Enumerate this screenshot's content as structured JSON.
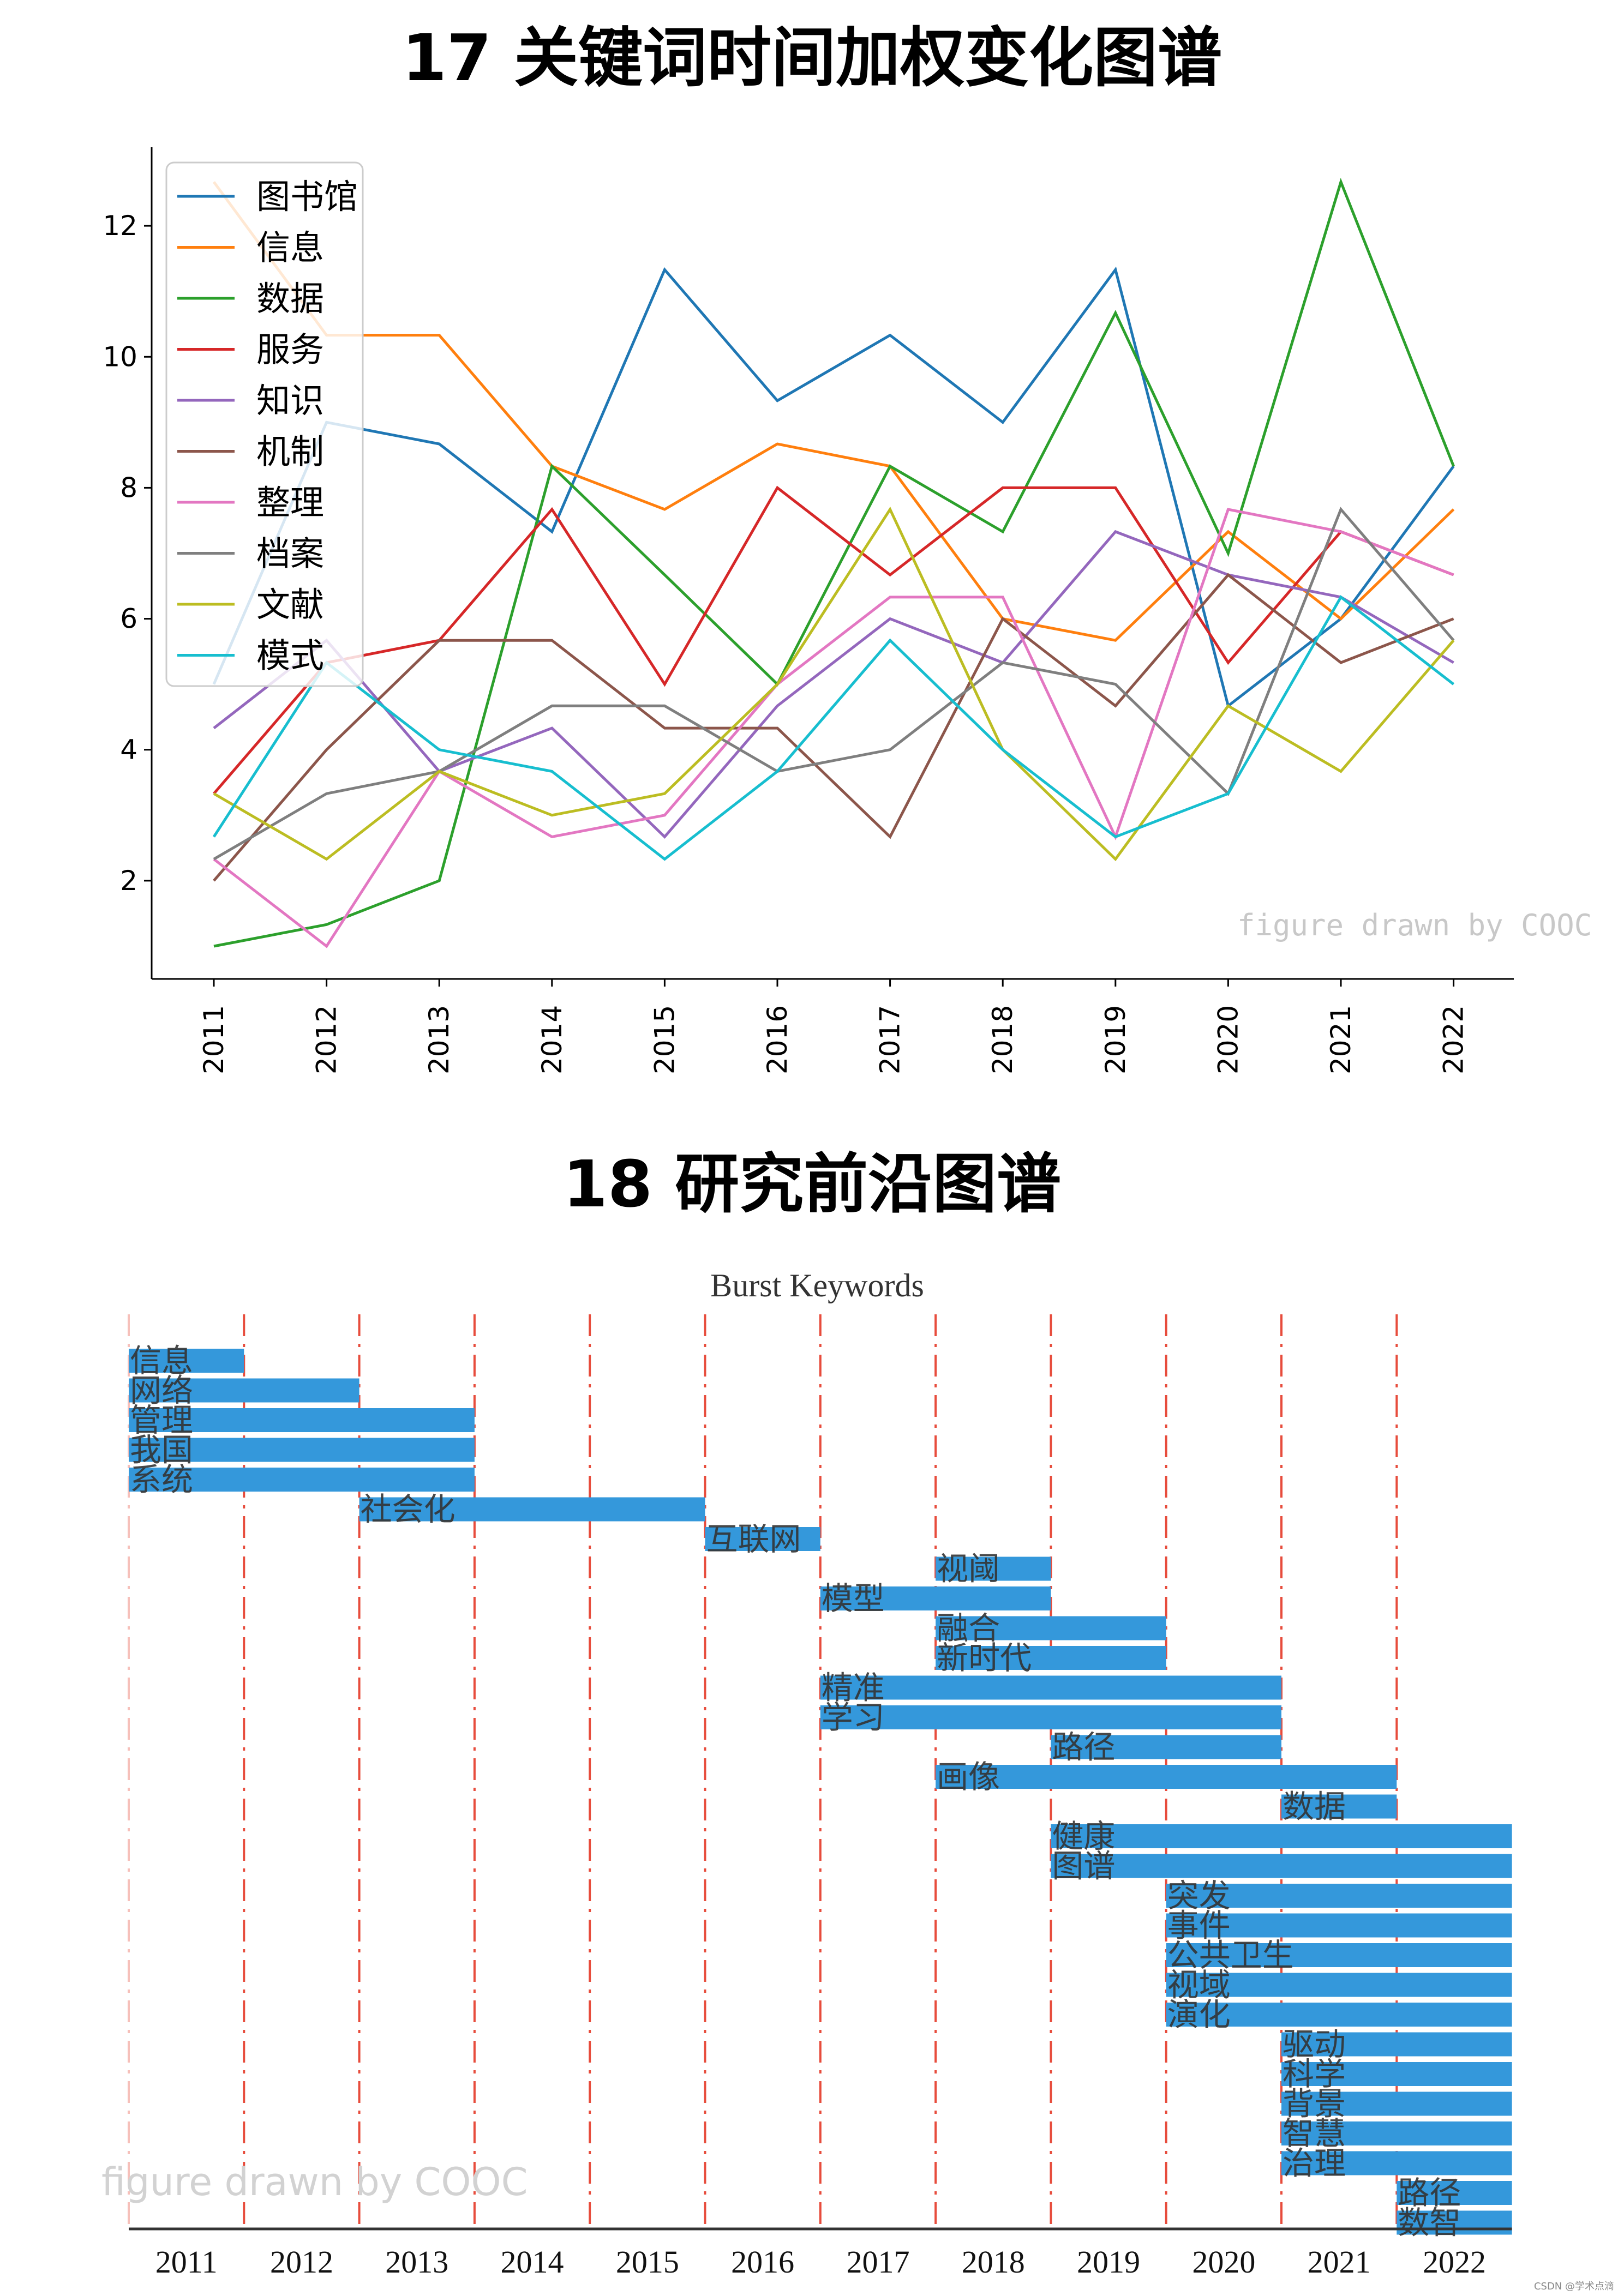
{
  "section1": {
    "title": "17 关键词时间加权变化图谱"
  },
  "section2": {
    "title": "18 研究前沿图谱"
  },
  "footer": "CSDN @学术点滴",
  "colors": {
    "图书馆": "#1f77b4",
    "信息": "#ff7f0e",
    "数据": "#2ca02c",
    "服务": "#d62728",
    "知识": "#9467bd",
    "机制": "#8c564b",
    "整理": "#e377c2",
    "档案": "#7f7f7f",
    "文献": "#bcbd22",
    "模式": "#17becf",
    "burst_bar": "#3498db",
    "burst_divider": "#e74c3c"
  },
  "chart_data": [
    {
      "type": "line",
      "title": "",
      "xlabel": "",
      "ylabel": "",
      "x": [
        "2011",
        "2012",
        "2013",
        "2014",
        "2015",
        "2016",
        "2017",
        "2018",
        "2019",
        "2020",
        "2021",
        "2022"
      ],
      "y_ticks": [
        2,
        4,
        6,
        8,
        10,
        12
      ],
      "ylim": [
        0.5,
        13.2
      ],
      "legend": "top-left",
      "watermark": "figure drawn by COOC",
      "series": [
        {
          "name": "图书馆",
          "values": [
            5.0,
            9.0,
            8.67,
            7.33,
            11.33,
            9.33,
            10.33,
            9.0,
            11.33,
            4.67,
            6.0,
            8.33
          ]
        },
        {
          "name": "信息",
          "values": [
            12.67,
            10.33,
            10.33,
            8.33,
            7.67,
            8.67,
            8.33,
            6.0,
            5.67,
            7.33,
            6.0,
            7.67
          ]
        },
        {
          "name": "数据",
          "values": [
            1.0,
            1.33,
            2.0,
            8.33,
            6.67,
            5.0,
            8.33,
            7.33,
            10.67,
            7.0,
            12.67,
            8.33
          ]
        },
        {
          "name": "服务",
          "values": [
            3.33,
            5.33,
            5.67,
            7.67,
            5.0,
            8.0,
            6.67,
            8.0,
            8.0,
            5.33,
            7.33,
            6.67
          ]
        },
        {
          "name": "知识",
          "values": [
            4.33,
            5.67,
            3.67,
            4.33,
            2.67,
            4.67,
            6.0,
            5.33,
            7.33,
            6.67,
            6.33,
            5.33
          ]
        },
        {
          "name": "机制",
          "values": [
            2.0,
            4.0,
            5.67,
            5.67,
            4.33,
            4.33,
            2.67,
            6.0,
            4.67,
            6.67,
            5.33,
            6.0
          ]
        },
        {
          "name": "整理",
          "values": [
            2.33,
            1.0,
            3.67,
            2.67,
            3.0,
            5.0,
            6.33,
            6.33,
            2.67,
            7.67,
            7.33,
            6.67
          ]
        },
        {
          "name": "档案",
          "values": [
            2.33,
            3.33,
            3.67,
            4.67,
            4.67,
            3.67,
            4.0,
            5.33,
            5.0,
            3.33,
            7.67,
            5.67
          ]
        },
        {
          "name": "文献",
          "values": [
            3.33,
            2.33,
            3.67,
            3.0,
            3.33,
            5.0,
            7.67,
            4.0,
            2.33,
            4.67,
            3.67,
            5.67
          ]
        },
        {
          "name": "模式",
          "values": [
            2.67,
            5.33,
            4.0,
            3.67,
            2.33,
            3.67,
            5.67,
            4.0,
            2.67,
            3.33,
            6.33,
            5.0
          ]
        }
      ]
    },
    {
      "type": "bar",
      "subtype": "timeline",
      "title": "Burst Keywords",
      "categories": [
        "2011",
        "2012",
        "2013",
        "2014",
        "2015",
        "2016",
        "2017",
        "2018",
        "2019",
        "2020",
        "2021",
        "2022"
      ],
      "watermark": "figure drawn by COOC",
      "bursts": [
        {
          "label": "信息",
          "start": 2011,
          "end": 2011
        },
        {
          "label": "网络",
          "start": 2011,
          "end": 2012
        },
        {
          "label": "管理",
          "start": 2011,
          "end": 2013
        },
        {
          "label": "我国",
          "start": 2011,
          "end": 2013
        },
        {
          "label": "系统",
          "start": 2011,
          "end": 2013
        },
        {
          "label": "社会化",
          "start": 2013,
          "end": 2015
        },
        {
          "label": "互联网",
          "start": 2016,
          "end": 2016
        },
        {
          "label": "视阈",
          "start": 2018,
          "end": 2018
        },
        {
          "label": "模型",
          "start": 2017,
          "end": 2018
        },
        {
          "label": "融合",
          "start": 2018,
          "end": 2019
        },
        {
          "label": "新时代",
          "start": 2018,
          "end": 2019
        },
        {
          "label": "精准",
          "start": 2017,
          "end": 2020
        },
        {
          "label": "学习",
          "start": 2017,
          "end": 2020
        },
        {
          "label": "路径",
          "start": 2019,
          "end": 2020
        },
        {
          "label": "画像",
          "start": 2018,
          "end": 2021
        },
        {
          "label": "数据",
          "start": 2021,
          "end": 2021
        },
        {
          "label": "健康",
          "start": 2019,
          "end": 2022
        },
        {
          "label": "图谱",
          "start": 2019,
          "end": 2022
        },
        {
          "label": "突发",
          "start": 2020,
          "end": 2022
        },
        {
          "label": "事件",
          "start": 2020,
          "end": 2022
        },
        {
          "label": "公共卫生",
          "start": 2020,
          "end": 2022
        },
        {
          "label": "视域",
          "start": 2020,
          "end": 2022
        },
        {
          "label": "演化",
          "start": 2020,
          "end": 2022
        },
        {
          "label": "驱动",
          "start": 2021,
          "end": 2022
        },
        {
          "label": "科学",
          "start": 2021,
          "end": 2022
        },
        {
          "label": "背景",
          "start": 2021,
          "end": 2022
        },
        {
          "label": "智慧",
          "start": 2021,
          "end": 2022
        },
        {
          "label": "治理",
          "start": 2021,
          "end": 2022
        },
        {
          "label": "路径",
          "start": 2022,
          "end": 2022
        },
        {
          "label": "数智",
          "start": 2022,
          "end": 2022
        }
      ]
    }
  ]
}
